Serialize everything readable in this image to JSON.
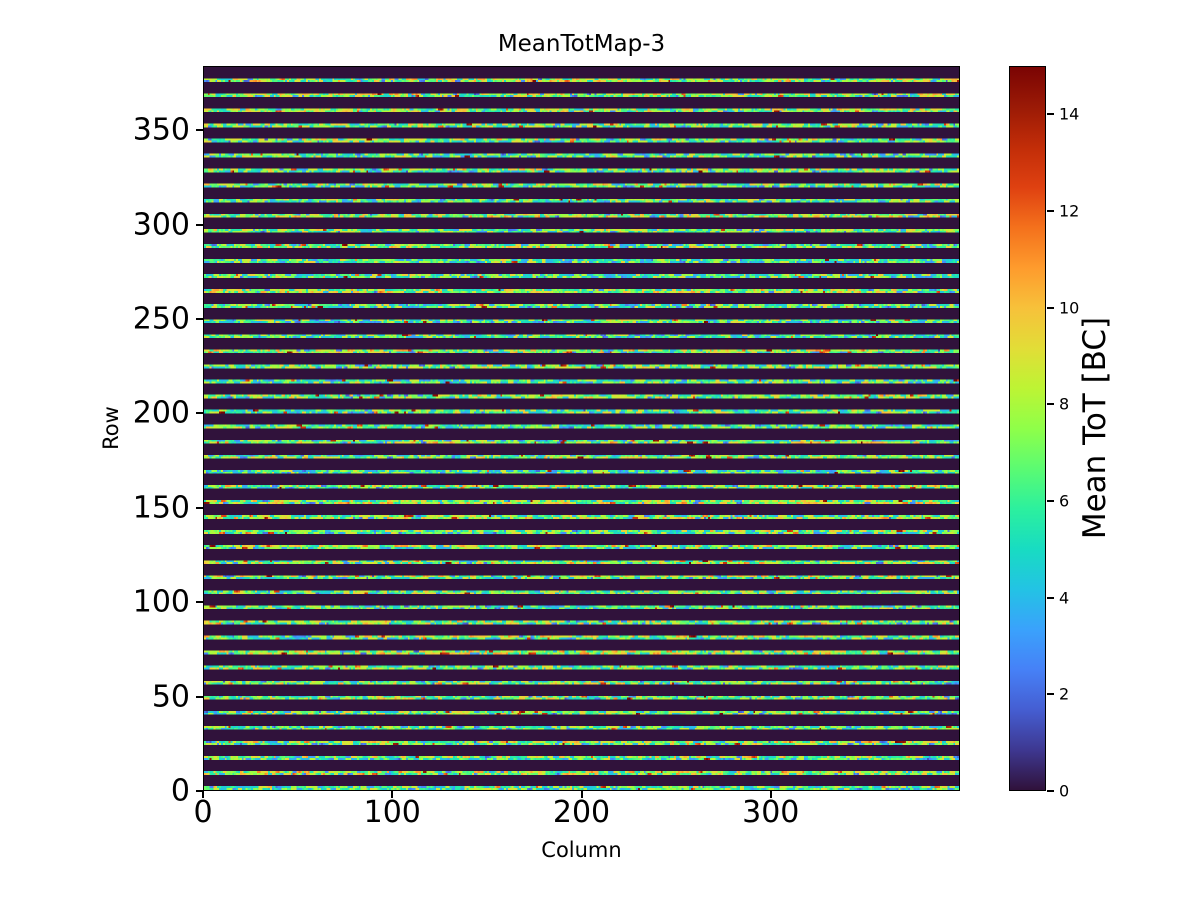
{
  "figure": {
    "background": "#ffffff",
    "text_color": "#000000"
  },
  "chart_data": {
    "type": "heatmap",
    "title": "MeanTotMap-3",
    "xlabel": "Column",
    "ylabel": "Row",
    "colorbar_label": "Mean ToT [BC]",
    "x_range": [
      0,
      400
    ],
    "y_range": [
      0,
      384
    ],
    "x_ticks": [
      0,
      100,
      200,
      300
    ],
    "y_ticks": [
      0,
      50,
      100,
      150,
      200,
      250,
      300,
      350
    ],
    "colorbar_ticks": [
      0,
      2,
      4,
      6,
      8,
      10,
      12,
      14
    ],
    "vmin": 0,
    "vmax": 15,
    "grid": false,
    "legend": "none",
    "colormap": "turbo",
    "colormap_stops": [
      "#30123b",
      "#3e3891",
      "#455ed2",
      "#4681f7",
      "#3aa2fc",
      "#23c3e4",
      "#18dcc2",
      "#2cf09e",
      "#5bfb72",
      "#8fff49",
      "#bdf434",
      "#e2dd37",
      "#f7c13a",
      "#fe9b2d",
      "#f4711c",
      "#df4111",
      "#c22d08",
      "#9b1a06",
      "#7a0403"
    ],
    "pattern": {
      "description": "Pixel matrix almost entirely at value 0 (dark purple) with bright speckled horizontal stripes (mixed cyan/green/yellow/orange, occasional red and blue pixels) covering 2 rows out of every 8, starting at row 0 up to row 377",
      "background_value": 0,
      "stripe_row_period": 8,
      "stripe_rows_per_group": 2,
      "stripe_value_typical_range": [
        4,
        10
      ],
      "hot_pixel_value_range": [
        11,
        15
      ],
      "cold_pixel_value_range": [
        2,
        4.5
      ],
      "hot_pixel_probability": 0.025,
      "cold_pixel_probability": 0.075,
      "segment_run_columns": [
        1,
        3
      ],
      "seed": 1337
    }
  }
}
